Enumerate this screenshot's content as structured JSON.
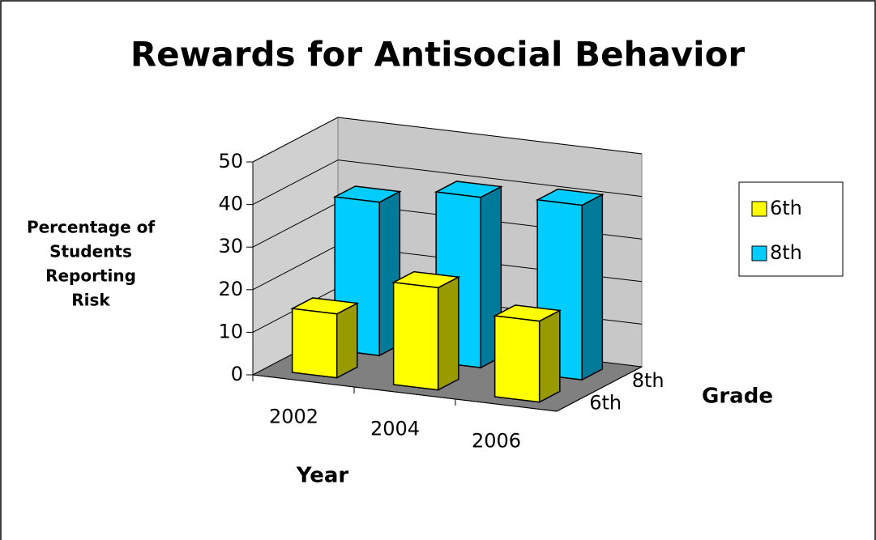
{
  "chart_data": {
    "type": "bar3d",
    "title": "Rewards for Antisocial Behavior",
    "y_label": [
      "Percentage of",
      "Students",
      "Reporting",
      "Risk"
    ],
    "x_label": "Year",
    "depth_label": "Grade",
    "categories": [
      "2002",
      "2004",
      "2006"
    ],
    "series": [
      {
        "name": "6th",
        "color": "#ffff00",
        "side_color": "#999900",
        "values": [
          15,
          24,
          19
        ]
      },
      {
        "name": "8th",
        "color": "#00ccff",
        "side_color": "#007a99",
        "values": [
          36,
          40,
          41
        ]
      }
    ],
    "ylim": [
      0,
      50
    ],
    "yticks": [
      0,
      10,
      20,
      30,
      40,
      50
    ],
    "grid": true,
    "legend": "right"
  }
}
